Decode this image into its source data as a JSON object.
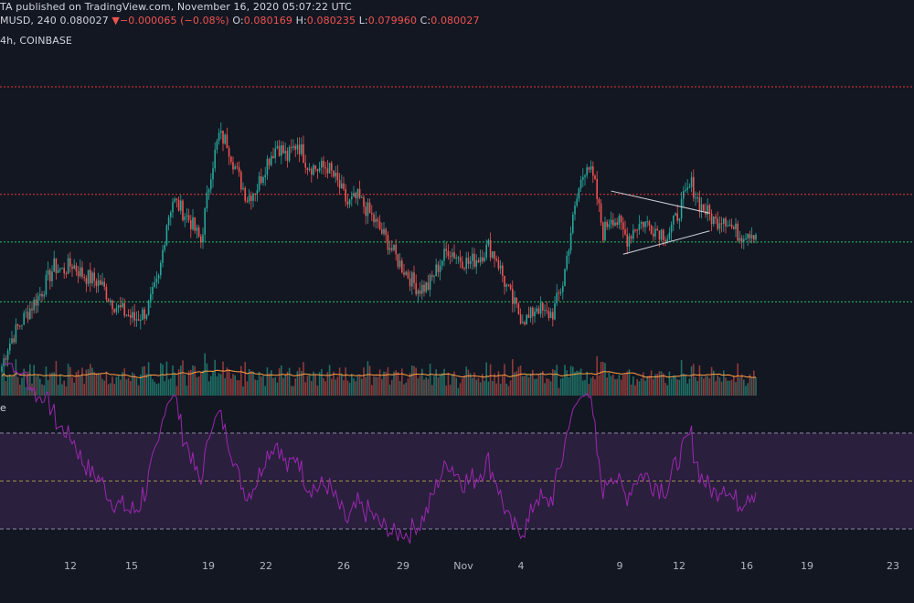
{
  "header": {
    "line1_prefix": "TA",
    "line1_published": "published on TradingView.com, November 16, 2020 05:07:22 UTC",
    "symbol": "MUSD, 240",
    "price": "0.080027",
    "change_arrow": "▼",
    "change": "−0.000065 (−0.08%)",
    "o_label": "O:",
    "o_value": "0.080169",
    "h_label": "H:",
    "h_value": "0.080235",
    "l_label": "L:",
    "l_value": "0.079960",
    "c_label": "C:",
    "c_value": "0.080027",
    "line3": "4h, COINBASE",
    "rsi_label": "e"
  },
  "colors": {
    "background": "#131722",
    "up": "#26a69a",
    "down": "#ef5350",
    "volume_up": "#1f6f66",
    "volume_down": "#8f3a3a",
    "volume_ma": "#ff9f43",
    "rsi_line": "#9c27b0",
    "rsi_band": "#2a1f3d",
    "resistance": "#e53935",
    "support": "#22c55e",
    "trendline": "#d1d4dc"
  },
  "chart_data": {
    "type": "candlestick",
    "x_tick_labels": [
      "12",
      "15",
      "19",
      "22",
      "26",
      "29",
      "Nov",
      "4",
      "9",
      "12",
      "16",
      "19",
      "23"
    ],
    "price_levels": {
      "resistance": [
        0.0952,
        0.0855
      ],
      "support": [
        0.0812,
        0.0758
      ]
    },
    "volume_ma": true,
    "rsi": {
      "bands": [
        70,
        50,
        30
      ]
    },
    "price_series": [
      [
        0,
        0.07
      ],
      [
        3,
        0.0718
      ],
      [
        8,
        0.0735
      ],
      [
        14,
        0.0752
      ],
      [
        20,
        0.0768
      ],
      [
        26,
        0.079
      ],
      [
        30,
        0.0786
      ],
      [
        35,
        0.0792
      ],
      [
        40,
        0.0783
      ],
      [
        44,
        0.0779
      ],
      [
        49,
        0.0775
      ],
      [
        54,
        0.076
      ],
      [
        58,
        0.0752
      ],
      [
        63,
        0.0746
      ],
      [
        66,
        0.0742
      ],
      [
        72,
        0.075
      ],
      [
        78,
        0.0778
      ],
      [
        82,
        0.083
      ],
      [
        85,
        0.085
      ],
      [
        89,
        0.0842
      ],
      [
        94,
        0.083
      ],
      [
        99,
        0.0812
      ],
      [
        104,
        0.0876
      ],
      [
        108,
        0.0908
      ],
      [
        112,
        0.0902
      ],
      [
        117,
        0.0874
      ],
      [
        122,
        0.0852
      ],
      [
        127,
        0.0862
      ],
      [
        132,
        0.0885
      ],
      [
        137,
        0.09
      ],
      [
        142,
        0.0888
      ],
      [
        147,
        0.0902
      ],
      [
        152,
        0.0882
      ],
      [
        157,
        0.0878
      ],
      [
        162,
        0.088
      ],
      [
        167,
        0.0865
      ],
      [
        172,
        0.0846
      ],
      [
        177,
        0.0852
      ],
      [
        182,
        0.084
      ],
      [
        187,
        0.0826
      ],
      [
        192,
        0.0812
      ],
      [
        197,
        0.0795
      ],
      [
        202,
        0.0782
      ],
      [
        207,
        0.077
      ],
      [
        212,
        0.0772
      ],
      [
        217,
        0.079
      ],
      [
        222,
        0.0806
      ],
      [
        227,
        0.0798
      ],
      [
        232,
        0.0793
      ],
      [
        237,
        0.0798
      ],
      [
        242,
        0.0808
      ],
      [
        246,
        0.0798
      ],
      [
        250,
        0.0776
      ],
      [
        254,
        0.0758
      ],
      [
        258,
        0.0745
      ],
      [
        262,
        0.0742
      ],
      [
        266,
        0.0755
      ],
      [
        270,
        0.0746
      ],
      [
        274,
        0.0748
      ],
      [
        279,
        0.0775
      ],
      [
        283,
        0.0822
      ],
      [
        287,
        0.086
      ],
      [
        291,
        0.0885
      ],
      [
        295,
        0.0862
      ],
      [
        299,
        0.082
      ],
      [
        303,
        0.0836
      ],
      [
        307,
        0.0828
      ],
      [
        311,
        0.0815
      ],
      [
        315,
        0.0826
      ],
      [
        319,
        0.083
      ],
      [
        323,
        0.0826
      ],
      [
        327,
        0.0822
      ],
      [
        331,
        0.0818
      ],
      [
        335,
        0.0832
      ],
      [
        339,
        0.085
      ],
      [
        343,
        0.0864
      ],
      [
        347,
        0.0846
      ],
      [
        351,
        0.0838
      ],
      [
        355,
        0.083
      ],
      [
        359,
        0.0836
      ],
      [
        363,
        0.0825
      ],
      [
        367,
        0.0818
      ],
      [
        371,
        0.0822
      ],
      [
        375,
        0.082
      ]
    ]
  }
}
